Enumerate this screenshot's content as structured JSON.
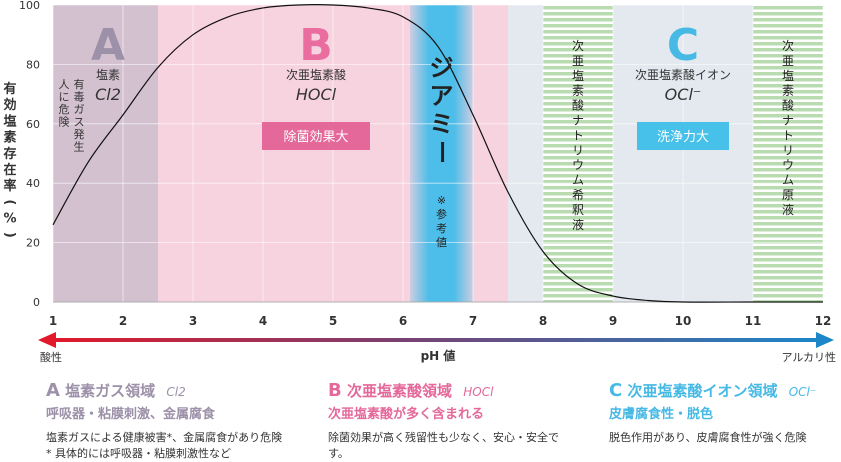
{
  "colors": {
    "zoneA": "#d3c1cf",
    "zoneB": "#f7d2df",
    "zoneC": "#e3e9ef",
    "giamy": "#4dbde9",
    "stripe": "#b9dbb0",
    "curve": "#111111",
    "arrowLeft": "#e1192b",
    "arrowRight": "#1c86c8",
    "legendA": "#9d91a9",
    "legendB": "#e5689a",
    "legendC": "#47b9e5",
    "badgeB": "#e5689a",
    "badgeC": "#47c0ea",
    "bigA": "#9d91a9",
    "bigB": "#ea6d9f",
    "bigC": "#47b9e5"
  },
  "chart_data": {
    "type": "area",
    "xlabel": "pH 値",
    "ylabel": "有効塩素存在率（%）",
    "xlim": [
      1,
      12
    ],
    "ylim": [
      0,
      100
    ],
    "xticks": [
      "1",
      "2",
      "3",
      "4",
      "5",
      "6",
      "7",
      "8",
      "9",
      "10",
      "11",
      "12"
    ],
    "yticks": [
      "0",
      "20",
      "40",
      "60",
      "80",
      "100"
    ],
    "axis_left_label": "酸性",
    "axis_right_label": "アルカリ性",
    "grid": true,
    "series": [
      {
        "name": "",
        "x": [
          1,
          1.5,
          2,
          2.5,
          3,
          3.5,
          4,
          4.5,
          5,
          5.5,
          6,
          6.5,
          7,
          7.5,
          8,
          8.5,
          9,
          9.5,
          10,
          11,
          12
        ],
        "values": [
          26,
          47,
          63,
          79,
          90,
          96,
          99,
          100,
          100,
          99,
          96,
          86,
          63,
          37,
          17,
          6,
          2,
          0.5,
          0,
          0,
          0
        ]
      }
    ],
    "zones": [
      {
        "letter": "A",
        "from": 1,
        "to": 2.5,
        "name": "塩素",
        "chem": "Cl2",
        "note": "有毒ガス発生\n人に危険"
      },
      {
        "letter": "B",
        "from": 2.5,
        "to": 7.5,
        "name": "次亜塩素酸",
        "chem": "HOCl",
        "badge": "除菌効果大"
      },
      {
        "letter": "C",
        "from": 7.5,
        "to": 12,
        "name": "次亜塩素酸イオン",
        "chem": "OCl⁻",
        "badge": "洗浄力大"
      }
    ],
    "bands": [
      {
        "from": 6.1,
        "to": 7,
        "label": "ジアミー",
        "note": "※参考値"
      },
      {
        "from": 8,
        "to": 9,
        "label": "次亜塩素酸ナトリウム希釈液"
      },
      {
        "from": 11,
        "to": 12,
        "label": "次亜塩素酸ナトリウム原液"
      }
    ]
  },
  "legend": [
    {
      "letter": "A",
      "title": "塩素ガス領域",
      "chem": "Cl2",
      "sub": "呼吸器・粘膜刺激、金属腐食",
      "desc": "塩素ガスによる健康被害*、金属腐食があり危険　* 具体的には呼吸器・粘膜刺激性など"
    },
    {
      "letter": "B",
      "title": "次亜塩素酸領域",
      "chem": "HOCl",
      "sub": "次亜塩素酸が多く含まれる",
      "desc": "除菌効果が高く残留性も少なく、安心・安全です。"
    },
    {
      "letter": "C",
      "title": "次亜塩素酸イオン領域",
      "chem": "OCl⁻",
      "sub": "皮膚腐食性・脱色",
      "desc": "脱色作用があり、皮膚腐食性が強く危険"
    }
  ]
}
